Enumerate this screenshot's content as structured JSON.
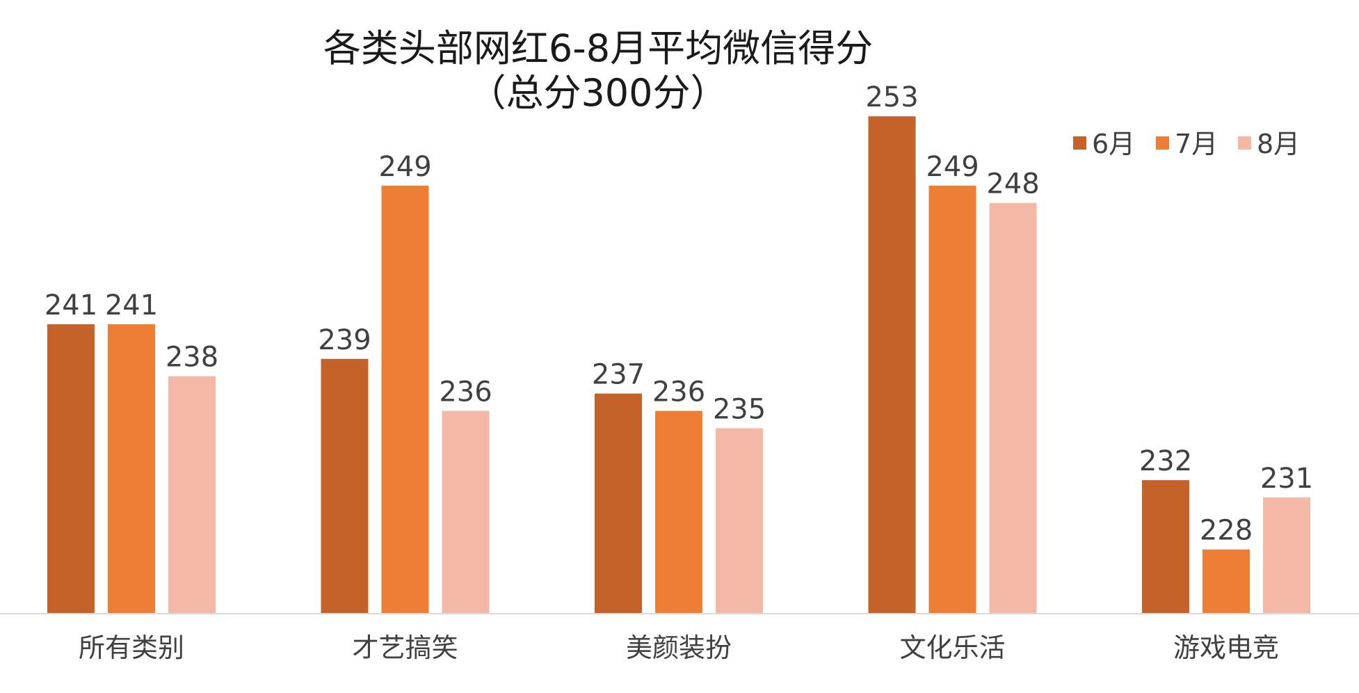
{
  "chart_data": {
    "type": "bar",
    "title": "各类头部网红6-8月平均微信得分",
    "subtitle": "（总分300分）",
    "categories": [
      "所有类别",
      "才艺搞笑",
      "美颜装扮",
      "文化乐活",
      "游戏电竞"
    ],
    "series": [
      {
        "name": "6月",
        "color": "#c4622a",
        "values": [
          241,
          239,
          237,
          253,
          232
        ]
      },
      {
        "name": "7月",
        "color": "#ef7e35",
        "values": [
          241,
          249,
          236,
          249,
          228
        ]
      },
      {
        "name": "8月",
        "color": "#f4b9a6",
        "values": [
          238,
          236,
          235,
          248,
          231
        ]
      }
    ],
    "legend_position": "top-right",
    "grid": false,
    "y_axis_visible": false,
    "data_labels": true,
    "text_color": "#404040",
    "baseline_color": "#d9d9d9"
  }
}
